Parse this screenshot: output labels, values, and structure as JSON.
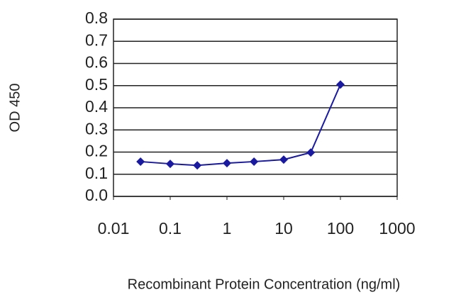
{
  "chart_data": {
    "type": "line",
    "x_label": "Recombinant Protein Concentration (ng/ml)",
    "y_label": "OD 450",
    "x": [
      0.03,
      0.1,
      0.3,
      1,
      3,
      10,
      30,
      100
    ],
    "values": [
      0.157,
      0.147,
      0.14,
      0.15,
      0.157,
      0.166,
      0.198,
      0.505
    ],
    "color": "#1a1aa0",
    "x_log": true,
    "xlim": [
      0.01,
      1000
    ],
    "xticks": [
      0.01,
      0.1,
      1,
      10,
      100,
      1000
    ],
    "ylim": [
      0,
      0.8
    ],
    "yticks": [
      {
        "value": 0,
        "label": "0.0"
      },
      0.1,
      0.2,
      0.3,
      0.4,
      0.5,
      0.6,
      0.7,
      0.8
    ],
    "grid": true
  }
}
